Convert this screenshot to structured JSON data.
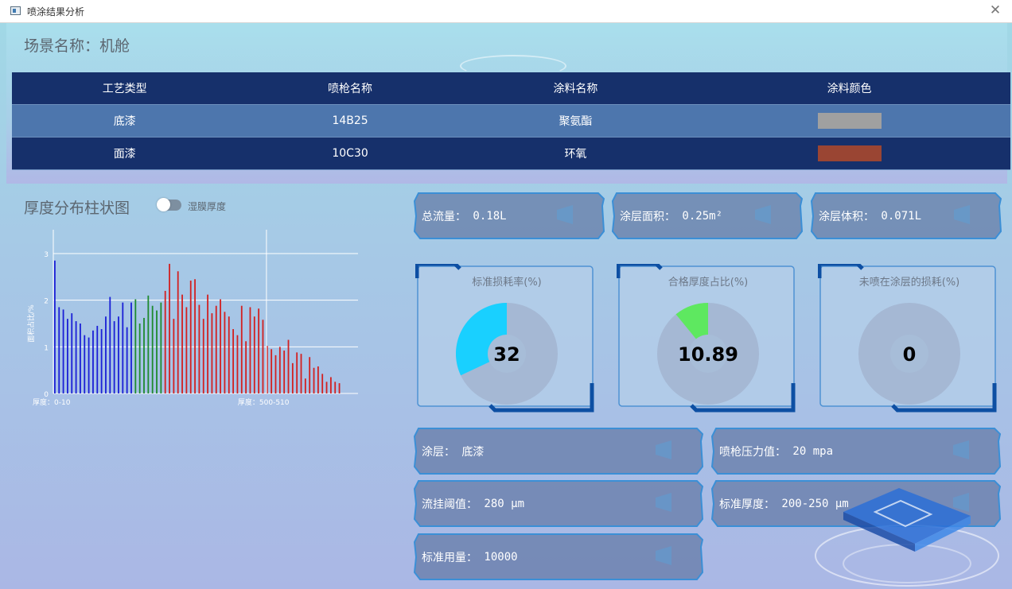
{
  "window": {
    "title": "喷涂结果分析"
  },
  "scene": {
    "title": "场景名称：机舱"
  },
  "table": {
    "headers": [
      "工艺类型",
      "喷枪名称",
      "涂料名称",
      "涂料颜色"
    ],
    "rows": [
      {
        "process": "底漆",
        "gun": "14B25",
        "paint": "聚氨酯",
        "color": "#a0a0a0"
      },
      {
        "process": "面漆",
        "gun": "10C30",
        "paint": "环氧",
        "color": "#9a4533"
      }
    ]
  },
  "chart_section": {
    "title": "厚度分布柱状图",
    "toggle_label": "湿膜厚度",
    "toggle_on": false
  },
  "chart_data": {
    "type": "bar",
    "ylabel": "面积占比/%",
    "ylim": [
      0,
      3
    ],
    "yticks": [
      "0",
      "1",
      "2",
      "3"
    ],
    "x_labels": [
      "厚度：0-10",
      "厚度：500-510"
    ],
    "marker_index": 50,
    "series": [
      {
        "color": "#1a1fd6",
        "values": [
          2.85,
          1.85,
          1.8,
          1.6,
          1.72,
          1.55,
          1.5,
          1.25,
          1.2,
          1.35,
          1.45,
          1.38,
          1.65,
          2.07,
          1.55,
          1.65,
          1.95,
          1.42,
          1.95
        ]
      },
      {
        "color": "#1e8a2e",
        "values": [
          2.02,
          1.5,
          1.62,
          2.1,
          1.88,
          1.78,
          1.95
        ]
      },
      {
        "color": "#d22020",
        "values": [
          2.2,
          2.78,
          1.6,
          2.62,
          2.12,
          1.85,
          2.42,
          2.45,
          1.9,
          1.6,
          2.12,
          1.72,
          1.88,
          2.02,
          1.75,
          1.65,
          1.38,
          1.25,
          1.88,
          1.12,
          1.85,
          1.65,
          1.82,
          1.58,
          1.02,
          0.95,
          0.82,
          1.0,
          0.92,
          1.15,
          0.65,
          0.88,
          0.85,
          0.32,
          0.78,
          0.55,
          0.58,
          0.42,
          0.25,
          0.35,
          0.25,
          0.22
        ]
      }
    ]
  },
  "stats_top": [
    {
      "label": "总流量：",
      "value": "0.18L"
    },
    {
      "label": "涂层面积：",
      "value": "0.25m²"
    },
    {
      "label": "涂层体积：",
      "value": "0.071L"
    }
  ],
  "gauges": [
    {
      "title": "标准损耗率(%)",
      "value": "32",
      "percent": 32,
      "color": "#19d0ff"
    },
    {
      "title": "合格厚度占比(%)",
      "value": "10.89",
      "percent": 10.89,
      "color": "#5ee860"
    },
    {
      "title": "未喷在涂层的损耗(%)",
      "value": "0",
      "percent": 0,
      "color": "#19d0ff"
    }
  ],
  "details": [
    {
      "label": "涂层：",
      "value": "底漆"
    },
    {
      "label": "喷枪压力值：",
      "value": "20 mpa"
    },
    {
      "label": "流挂阈值：",
      "value": "280 μm"
    },
    {
      "label": "标准厚度：",
      "value": "200-250 μm"
    },
    {
      "label": "标准用量：",
      "value": "10000"
    }
  ]
}
